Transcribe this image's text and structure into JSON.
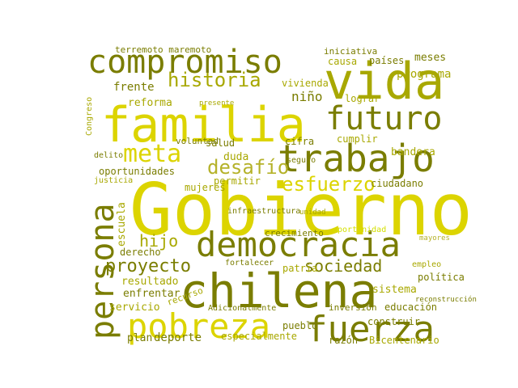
{
  "palette": {
    "lime": "#d4e000",
    "yellow": "#dcd400",
    "olive": "#a8a800",
    "dark_olive": "#7a7d00",
    "khaki": "#b5b22a"
  },
  "words": [
    {
      "id": "gobierno",
      "text": "Gobierno",
      "color": "yellow"
    },
    {
      "id": "familia",
      "text": "familia",
      "color": "yellow"
    },
    {
      "id": "chilena",
      "text": "chilena",
      "color": "dark_olive"
    },
    {
      "id": "vida",
      "text": "vida",
      "color": "olive"
    },
    {
      "id": "compromiso",
      "text": "compromiso",
      "color": "dark_olive"
    },
    {
      "id": "democracia",
      "text": "democracia",
      "color": "dark_olive"
    },
    {
      "id": "trabajo",
      "text": "trabajo",
      "color": "dark_olive"
    },
    {
      "id": "persona",
      "text": "persona",
      "color": "dark_olive"
    },
    {
      "id": "pobreza",
      "text": "pobreza",
      "color": "yellow"
    },
    {
      "id": "fuerza",
      "text": "fuerza",
      "color": "dark_olive"
    },
    {
      "id": "futuro",
      "text": "futuro",
      "color": "dark_olive"
    },
    {
      "id": "meta",
      "text": "meta",
      "color": "yellow"
    },
    {
      "id": "desafio",
      "text": "desafío",
      "color": "khaki"
    },
    {
      "id": "proyecto",
      "text": "proyecto",
      "color": "dark_olive"
    },
    {
      "id": "esfuerzo",
      "text": "esfuerzo",
      "color": "yellow"
    },
    {
      "id": "historia",
      "text": "historia",
      "color": "olive"
    },
    {
      "id": "sociedad",
      "text": "sociedad",
      "color": "dark_olive"
    },
    {
      "id": "hijo",
      "text": "hijo",
      "color": "olive"
    },
    {
      "id": "nino",
      "text": "niño",
      "color": "dark_olive"
    },
    {
      "id": "oportunidades",
      "text": "oportunidades",
      "color": "dark_olive"
    },
    {
      "id": "terremoto-maremoto",
      "text": "terremoto maremoto",
      "color": "dark_olive"
    },
    {
      "id": "frente",
      "text": "frente",
      "color": "dark_olive"
    },
    {
      "id": "reforma",
      "text": "reforma",
      "color": "olive"
    },
    {
      "id": "paises",
      "text": "países",
      "color": "dark_olive"
    },
    {
      "id": "meses",
      "text": "meses",
      "color": "dark_olive"
    },
    {
      "id": "programa",
      "text": "programa",
      "color": "olive"
    },
    {
      "id": "iniciativa",
      "text": "iniciativa",
      "color": "dark_olive"
    },
    {
      "id": "causa",
      "text": "causa",
      "color": "olive"
    },
    {
      "id": "vivienda",
      "text": "vivienda",
      "color": "olive"
    },
    {
      "id": "lograr",
      "text": "lograr",
      "color": "olive"
    },
    {
      "id": "cumplir",
      "text": "cumplir",
      "color": "olive"
    },
    {
      "id": "bandera",
      "text": "bandera",
      "color": "olive"
    },
    {
      "id": "salud",
      "text": "salud",
      "color": "dark_olive"
    },
    {
      "id": "duda",
      "text": "duda",
      "color": "olive"
    },
    {
      "id": "cifra",
      "text": "cifra",
      "color": "dark_olive"
    },
    {
      "id": "voluntad",
      "text": "voluntad",
      "color": "dark_olive"
    },
    {
      "id": "permitir",
      "text": "permitir",
      "color": "olive"
    },
    {
      "id": "ciudadano",
      "text": "ciudadano",
      "color": "dark_olive"
    },
    {
      "id": "mujeres",
      "text": "mujeres",
      "color": "olive"
    },
    {
      "id": "crecimiento",
      "text": "crecimiento",
      "color": "dark_olive"
    },
    {
      "id": "escuela",
      "text": "escuela",
      "color": "olive"
    },
    {
      "id": "derecho",
      "text": "derecho",
      "color": "dark_olive"
    },
    {
      "id": "resultado",
      "text": "resultado",
      "color": "olive"
    },
    {
      "id": "enfrentar",
      "text": "enfrentar",
      "color": "dark_olive"
    },
    {
      "id": "servicio",
      "text": "servicio",
      "color": "olive"
    },
    {
      "id": "deporte",
      "text": "deporte",
      "color": "dark_olive"
    },
    {
      "id": "plan",
      "text": "plan",
      "color": "dark_olive"
    },
    {
      "id": "especialmente",
      "text": "especialmente",
      "color": "olive"
    },
    {
      "id": "adicionalmente",
      "text": "Adicionalmente",
      "color": "dark_olive"
    },
    {
      "id": "pueblo",
      "text": "pueblo",
      "color": "dark_olive"
    },
    {
      "id": "patria",
      "text": "patria",
      "color": "olive"
    },
    {
      "id": "fortalecer",
      "text": "fortalecer",
      "color": "dark_olive"
    },
    {
      "id": "sistema",
      "text": "sistema",
      "color": "olive"
    },
    {
      "id": "educacion",
      "text": "educación",
      "color": "dark_olive"
    },
    {
      "id": "politica",
      "text": "política",
      "color": "dark_olive"
    },
    {
      "id": "inversion",
      "text": "inversión",
      "color": "dark_olive"
    },
    {
      "id": "construir",
      "text": "construir",
      "color": "dark_olive"
    },
    {
      "id": "bicentenario",
      "text": "Bicentenario",
      "color": "olive"
    },
    {
      "id": "razon",
      "text": "razón",
      "color": "dark_olive"
    },
    {
      "id": "seguro",
      "text": "seguro",
      "color": "dark_olive"
    },
    {
      "id": "infraestructura",
      "text": "infraestructura",
      "color": "dark_olive"
    },
    {
      "id": "recurso",
      "text": "recurso",
      "color": "olive"
    },
    {
      "id": "justicia",
      "text": "justicia",
      "color": "olive"
    },
    {
      "id": "delito",
      "text": "delito",
      "color": "dark_olive"
    },
    {
      "id": "oportunidad",
      "text": "oportunidad",
      "color": "lime"
    },
    {
      "id": "empleo",
      "text": "empleo",
      "color": "olive"
    },
    {
      "id": "reconstruccion",
      "text": "reconstrucción",
      "color": "dark_olive"
    },
    {
      "id": "unidad",
      "text": "unidad",
      "color": "olive"
    },
    {
      "id": "presente",
      "text": "presente",
      "color": "olive"
    },
    {
      "id": "congreso",
      "text": "Congreso",
      "color": "olive"
    },
    {
      "id": "mayores",
      "text": "mayores",
      "color": "khaki"
    }
  ]
}
